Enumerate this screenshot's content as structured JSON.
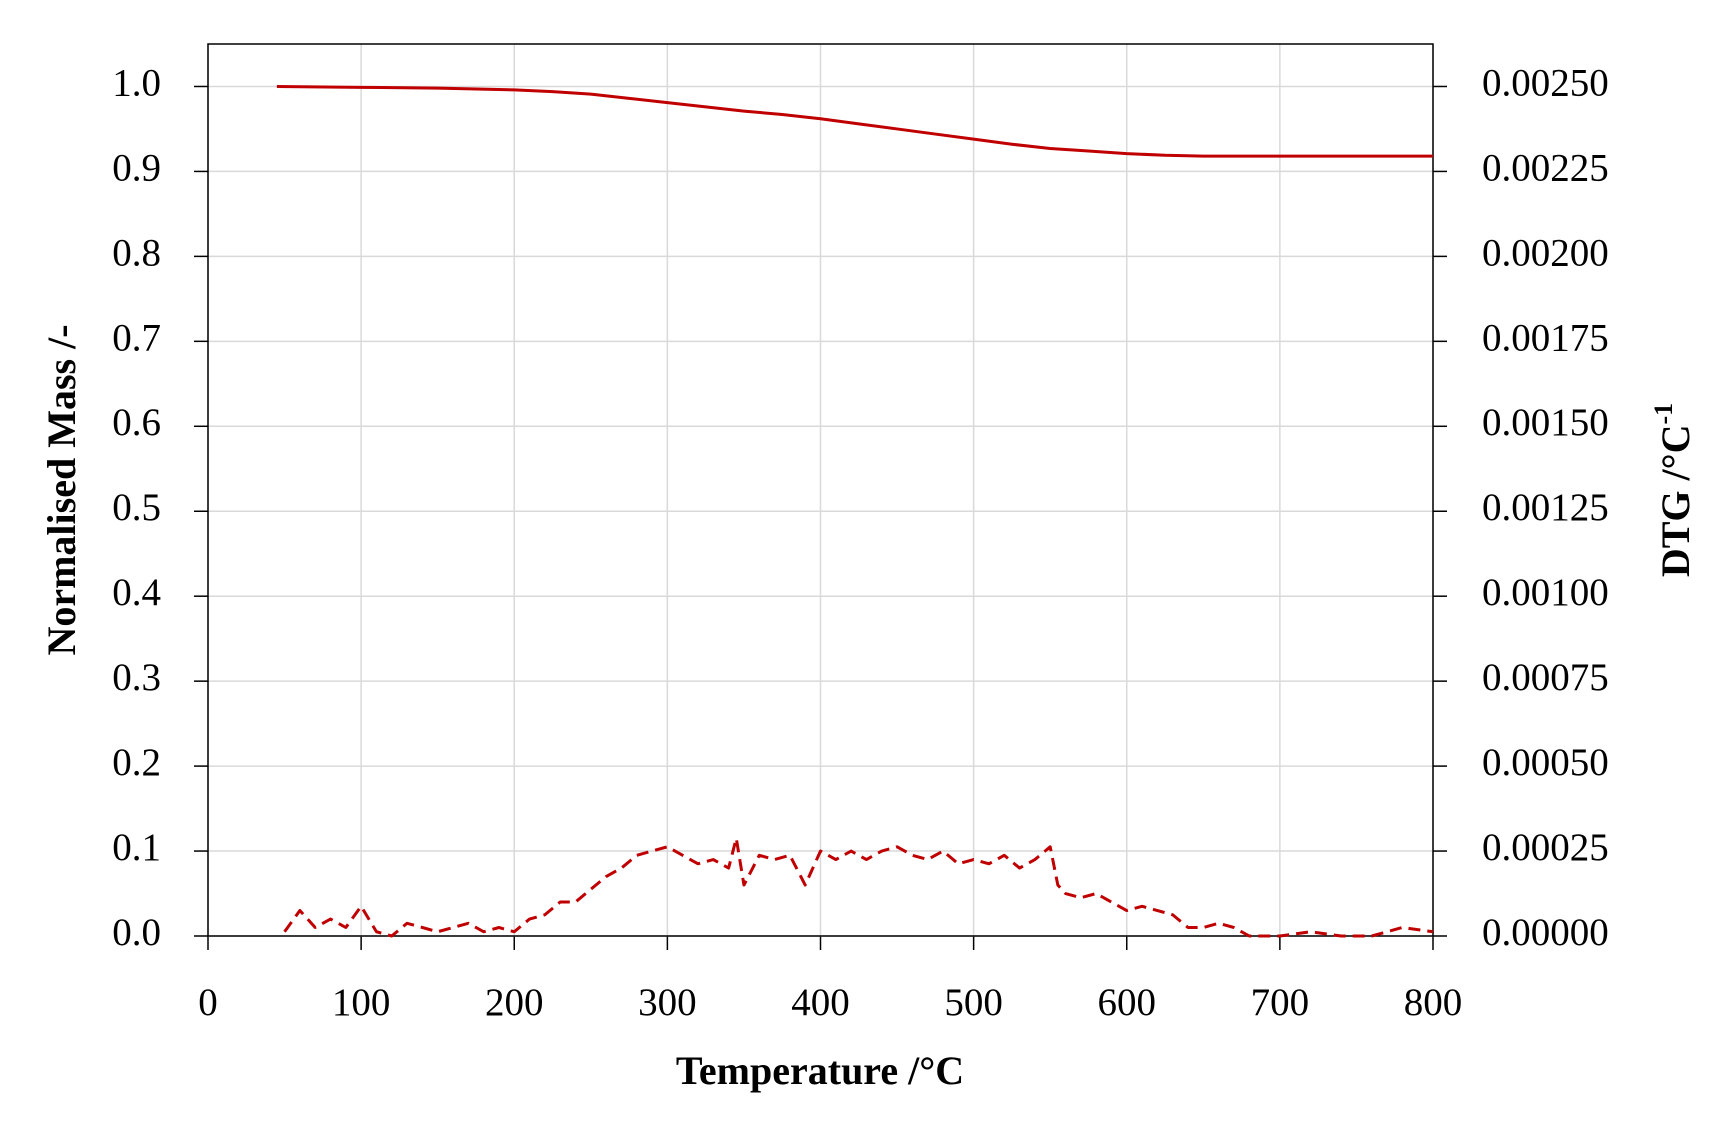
{
  "chart_data": {
    "type": "line",
    "xlabel": "Temperature /°C",
    "ylabel": "Normalised Mass /-",
    "y2label": "DTG  /°C",
    "y2label_superscript": "-1",
    "xlim": [
      0,
      800
    ],
    "xticks": [
      0,
      100,
      200,
      300,
      400,
      500,
      600,
      700,
      800
    ],
    "ylim": [
      0,
      1.05
    ],
    "yticks": [
      {
        "value": 0,
        "label": "0.0"
      },
      0.1,
      0.2,
      0.3,
      0.4,
      0.5,
      0.6,
      0.7,
      0.8,
      0.9,
      {
        "value": 1,
        "label": "1.0"
      }
    ],
    "y2lim": [
      0,
      0.002625
    ],
    "y2ticks": [
      {
        "value": 0,
        "label": "0.00000"
      },
      {
        "value": 0.00025,
        "label": "0.00025"
      },
      {
        "value": 0.0005,
        "label": "0.00050"
      },
      {
        "value": 0.00075,
        "label": "0.00075"
      },
      {
        "value": 0.001,
        "label": "0.00100"
      },
      {
        "value": 0.00125,
        "label": "0.00125"
      },
      {
        "value": 0.0015,
        "label": "0.00150"
      },
      {
        "value": 0.00175,
        "label": "0.00175"
      },
      {
        "value": 0.002,
        "label": "0.00200"
      },
      {
        "value": 0.00225,
        "label": "0.00225"
      },
      {
        "value": 0.0025,
        "label": "0.00250"
      }
    ],
    "grid": true,
    "series": [
      {
        "color": "#c00000",
        "dash": false,
        "x": [
          45,
          100,
          150,
          200,
          225,
          250,
          275,
          300,
          325,
          350,
          375,
          400,
          425,
          450,
          475,
          500,
          525,
          550,
          575,
          600,
          625,
          650,
          700,
          750,
          800
        ],
        "values": [
          1.0,
          0.999,
          0.998,
          0.996,
          0.994,
          0.991,
          0.986,
          0.981,
          0.976,
          0.971,
          0.967,
          0.962,
          0.956,
          0.95,
          0.944,
          0.938,
          0.932,
          0.927,
          0.924,
          0.921,
          0.919,
          0.918,
          0.918,
          0.918,
          0.918
        ]
      },
      {
        "color": "#c00000",
        "dash": true,
        "axis": "y2",
        "x": [
          50,
          60,
          70,
          80,
          90,
          100,
          110,
          120,
          130,
          140,
          150,
          160,
          170,
          180,
          190,
          200,
          210,
          220,
          230,
          240,
          250,
          260,
          270,
          280,
          290,
          300,
          310,
          320,
          330,
          340,
          345,
          350,
          360,
          370,
          380,
          390,
          400,
          410,
          420,
          430,
          440,
          450,
          460,
          470,
          480,
          490,
          500,
          510,
          520,
          530,
          540,
          550,
          555,
          560,
          570,
          580,
          590,
          600,
          610,
          620,
          630,
          640,
          650,
          660,
          670,
          680,
          690,
          700,
          720,
          740,
          760,
          780,
          800
        ],
        "values": [
          1.25e-05,
          7.5e-05,
          2.5e-05,
          5e-05,
          2.5e-05,
          8.75e-05,
          1.25e-05,
          0,
          3.75e-05,
          2.5e-05,
          1.25e-05,
          2.5e-05,
          3.75e-05,
          1.25e-05,
          2.5e-05,
          1.25e-05,
          5e-05,
          6.25e-05,
          0.0001,
          0.0001,
          0.0001375,
          0.000175,
          0.0002,
          0.0002375,
          0.00025,
          0.0002625,
          0.0002375,
          0.0002125,
          0.000225,
          0.0002,
          0.0002875,
          0.00015,
          0.0002375,
          0.000225,
          0.0002375,
          0.00015,
          0.00025,
          0.000225,
          0.00025,
          0.000225,
          0.00025,
          0.0002625,
          0.0002375,
          0.000225,
          0.00025,
          0.0002125,
          0.000225,
          0.0002125,
          0.0002375,
          0.0002,
          0.000225,
          0.0002625,
          0.00015,
          0.000125,
          0.0001125,
          0.000125,
          0.0001,
          7.5e-05,
          8.75e-05,
          7.5e-05,
          6.25e-05,
          2.5e-05,
          2.5e-05,
          3.75e-05,
          2.5e-05,
          0,
          0,
          0,
          1.25e-05,
          0,
          0,
          2.5e-05,
          1.25e-05
        ]
      }
    ]
  }
}
